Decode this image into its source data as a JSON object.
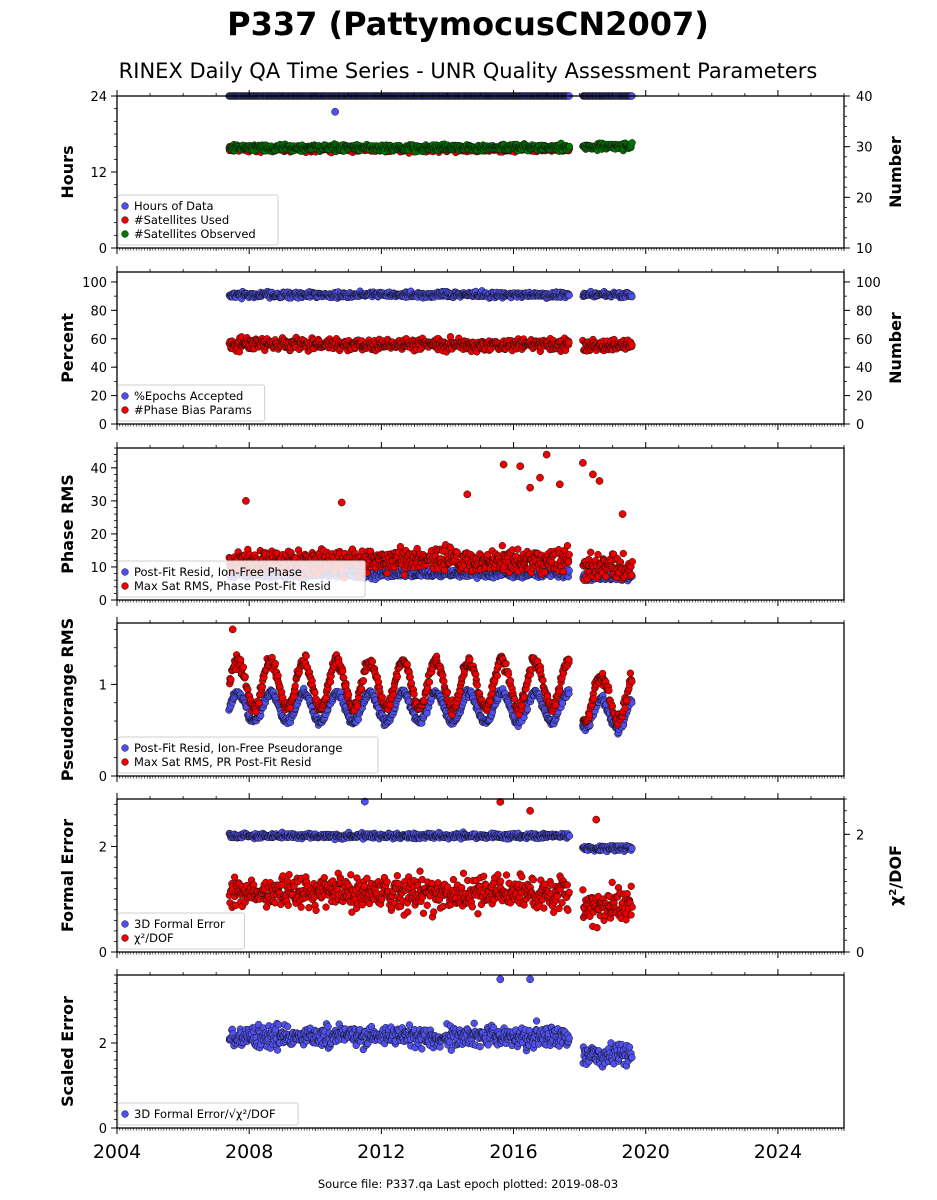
{
  "title": "P337 (PattymocusCN2007)",
  "subtitle": "RINEX Daily QA Time Series - UNR Quality Assessment Parameters",
  "footer": "Source file: P337.qa Last epoch plotted: 2019-08-03",
  "colors": {
    "blue": "#5050ee",
    "red": "#ee0000",
    "green": "#007700",
    "navy": "#0a0a50"
  },
  "chart_data": [
    {
      "type": "scatter",
      "ylabel": "Hours",
      "ylabel_right": "Number",
      "xlim": [
        2004,
        2026
      ],
      "ylim": [
        0,
        24
      ],
      "ylim_right": [
        10,
        40
      ],
      "yticks": [
        "0",
        "12",
        "24"
      ],
      "yticks_right": [
        "10",
        "20",
        "30",
        "40"
      ],
      "legend": [
        "Hours of Data",
        "#Satellites Used",
        "#Satellites Observed"
      ],
      "legend_loc": "lower-left",
      "series": [
        {
          "name": "Hours of Data",
          "axis": "left",
          "segments": [
            [
              2007.4,
              2017.7,
              24.0
            ],
            [
              2018.1,
              2019.6,
              24.0
            ]
          ],
          "outliers": [
            [
              2010.6,
              21.5
            ]
          ]
        },
        {
          "name": "#Satellites Used",
          "axis": "right",
          "segments": [
            [
              2007.4,
              2017.7,
              29.5
            ]
          ],
          "outliers": [
            [
              2009.6,
              30.0
            ]
          ]
        },
        {
          "name": "#Satellites Observed",
          "axis": "right",
          "segments": [
            [
              2007.4,
              2017.7,
              29.8
            ],
            [
              2018.1,
              2019.6,
              30.1
            ]
          ]
        }
      ]
    },
    {
      "type": "scatter",
      "ylabel": "Percent",
      "ylabel_right": "Number",
      "xlim": [
        2004,
        2026
      ],
      "ylim": [
        0,
        107
      ],
      "ylim_right": [
        0,
        107
      ],
      "yticks": [
        "0",
        "20",
        "40",
        "60",
        "80",
        "100"
      ],
      "yticks_right": [
        "0",
        "20",
        "40",
        "60",
        "80",
        "100"
      ],
      "legend": [
        "%Epochs Accepted",
        "#Phase Bias Params"
      ],
      "legend_loc": "lower-left",
      "series": [
        {
          "name": "%Epochs Accepted",
          "axis": "left",
          "segments": [
            [
              2007.4,
              2017.7,
              91.0
            ],
            [
              2018.1,
              2019.6,
              91.0
            ]
          ]
        },
        {
          "name": "#Phase Bias Params",
          "axis": "right",
          "segments": [
            [
              2007.4,
              2017.7,
              56.0
            ],
            [
              2018.1,
              2019.6,
              55.0
            ]
          ]
        }
      ]
    },
    {
      "type": "scatter",
      "ylabel": "Phase RMS",
      "xlim": [
        2004,
        2026
      ],
      "ylim": [
        0,
        46
      ],
      "yticks": [
        "0",
        "10",
        "20",
        "30",
        "40"
      ],
      "legend": [
        "Post-Fit Resid, Ion-Free Phase",
        "Max Sat RMS, Phase Post-Fit Resid"
      ],
      "legend_loc": "lower-left",
      "series": [
        {
          "name": "Post-Fit Resid, Ion-Free Phase",
          "segments": [
            [
              2007.4,
              2017.7,
              8.0
            ],
            [
              2018.1,
              2019.6,
              7.0
            ]
          ]
        },
        {
          "name": "Max Sat RMS, Phase Post-Fit Resid",
          "segments": [
            [
              2007.4,
              2017.7,
              12.0
            ],
            [
              2018.1,
              2019.6,
              10.0
            ]
          ],
          "outliers": [
            [
              2007.9,
              30
            ],
            [
              2010.8,
              29.5
            ],
            [
              2014.6,
              32
            ],
            [
              2015.7,
              41
            ],
            [
              2016.2,
              40.5
            ],
            [
              2016.5,
              34
            ],
            [
              2016.8,
              37
            ],
            [
              2017.0,
              44
            ],
            [
              2017.4,
              35
            ],
            [
              2018.1,
              41.5
            ],
            [
              2018.4,
              38
            ],
            [
              2018.6,
              36
            ],
            [
              2019.3,
              26
            ]
          ]
        }
      ]
    },
    {
      "type": "scatter",
      "ylabel": "Pseudorange RMS",
      "xlim": [
        2004,
        2026
      ],
      "ylim": [
        0,
        1.67
      ],
      "yticks": [
        "0",
        "1"
      ],
      "legend": [
        "Post-Fit Resid, Ion-Free Pseudorange",
        "Max Sat RMS, PR Post-Fit Resid"
      ],
      "legend_loc": "lower-left",
      "series": [
        {
          "name": "Post-Fit Resid, Ion-Free Pseudorange",
          "segments": [
            [
              2007.4,
              2017.7,
              0.75
            ],
            [
              2018.1,
              2019.6,
              0.68
            ]
          ]
        },
        {
          "name": "Max Sat RMS, PR Post-Fit Resid",
          "segments": [
            [
              2007.4,
              2017.7,
              1.0
            ],
            [
              2018.1,
              2019.6,
              0.85
            ]
          ],
          "outliers": [
            [
              2007.5,
              1.6
            ]
          ]
        }
      ]
    },
    {
      "type": "scatter",
      "ylabel": "Formal Error",
      "ylabel_right": "χ²/DOF",
      "xlim": [
        2004,
        2026
      ],
      "ylim": [
        0,
        2.9
      ],
      "ylim_right": [
        0,
        2.6
      ],
      "yticks": [
        "0",
        "2"
      ],
      "yticks_right": [
        "0",
        "2"
      ],
      "legend": [
        "3D Formal Error",
        "χ²/DOF"
      ],
      "legend_loc": "lower-left",
      "series": [
        {
          "name": "3D Formal Error",
          "axis": "left",
          "segments": [
            [
              2007.4,
              2017.7,
              2.2
            ],
            [
              2018.1,
              2019.6,
              1.97
            ]
          ],
          "outliers": [
            [
              2011.5,
              2.85
            ]
          ]
        },
        {
          "name": "χ²/DOF",
          "axis": "right",
          "segments": [
            [
              2007.4,
              2017.7,
              1.0
            ],
            [
              2018.1,
              2019.6,
              0.8
            ]
          ],
          "outliers": [
            [
              2015.6,
              2.55
            ],
            [
              2016.5,
              2.4
            ],
            [
              2018.5,
              2.25
            ]
          ]
        }
      ]
    },
    {
      "type": "scatter",
      "ylabel": "Scaled Error",
      "xlim": [
        2004,
        2026
      ],
      "ylim": [
        0,
        3.6
      ],
      "yticks": [
        "0",
        "2"
      ],
      "xticks": [
        "2004",
        "2008",
        "2012",
        "2016",
        "2020",
        "2024"
      ],
      "legend": [
        "3D Formal Error/√χ²/DOF"
      ],
      "legend_loc": "lower-left",
      "series": [
        {
          "name": "3D Formal Error/√χ²/DOF",
          "segments": [
            [
              2007.4,
              2017.7,
              2.15
            ],
            [
              2018.1,
              2019.6,
              1.75
            ]
          ],
          "outliers": [
            [
              2015.6,
              3.5
            ],
            [
              2016.5,
              3.5
            ]
          ]
        }
      ]
    }
  ]
}
